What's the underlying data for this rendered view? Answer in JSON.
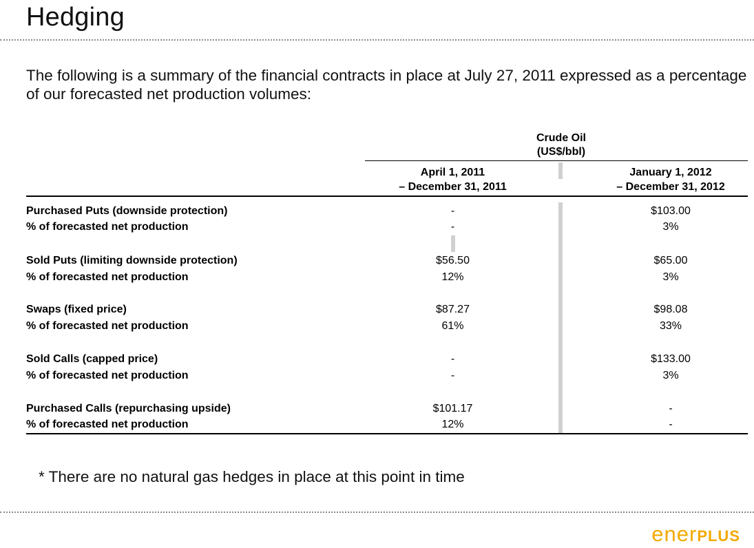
{
  "title": "Hedging",
  "intro": "The following is a summary of the financial contracts in place at July 27, 2011 expressed as a percentage of our forecasted net production volumes:",
  "table": {
    "group_header_line1": "Crude Oil",
    "group_header_line2": "(US$/bbl)",
    "col1_line1": "April 1, 2011",
    "col1_line2": "– December 31, 2011",
    "col2_line1": "January 1, 2012",
    "col2_line2": "– December 31, 2012",
    "rows": [
      {
        "label": "Purchased Puts (downside protection)",
        "c1": "-",
        "c2": "$103.00"
      },
      {
        "label": "% of forecasted net production",
        "c1": "-",
        "c2": "3%"
      },
      {
        "label": "Sold Puts (limiting downside protection)",
        "c1": "$56.50",
        "c2": "$65.00"
      },
      {
        "label": "% of forecasted net production",
        "c1": "12%",
        "c2": "3%"
      },
      {
        "label": "Swaps (fixed price)",
        "c1": "$87.27",
        "c2": "$98.08"
      },
      {
        "label": "% of forecasted net production",
        "c1": "61%",
        "c2": "33%"
      },
      {
        "label": "Sold Calls (capped price)",
        "c1": "-",
        "c2": "$133.00"
      },
      {
        "label": "% of forecasted net production",
        "c1": "-",
        "c2": "3%"
      },
      {
        "label": "Purchased Calls (repurchasing upside)",
        "c1": "$101.17",
        "c2": "-"
      },
      {
        "label": "% of forecasted net production",
        "c1": "12%",
        "c2": "-"
      }
    ]
  },
  "footnote": "* There are no natural gas hedges in place at this point in time",
  "logo": {
    "part1": "ener",
    "part2": "plus"
  },
  "colors": {
    "logo": "#f2a900",
    "rule": "#000000",
    "separator": "#d0d0d0"
  }
}
